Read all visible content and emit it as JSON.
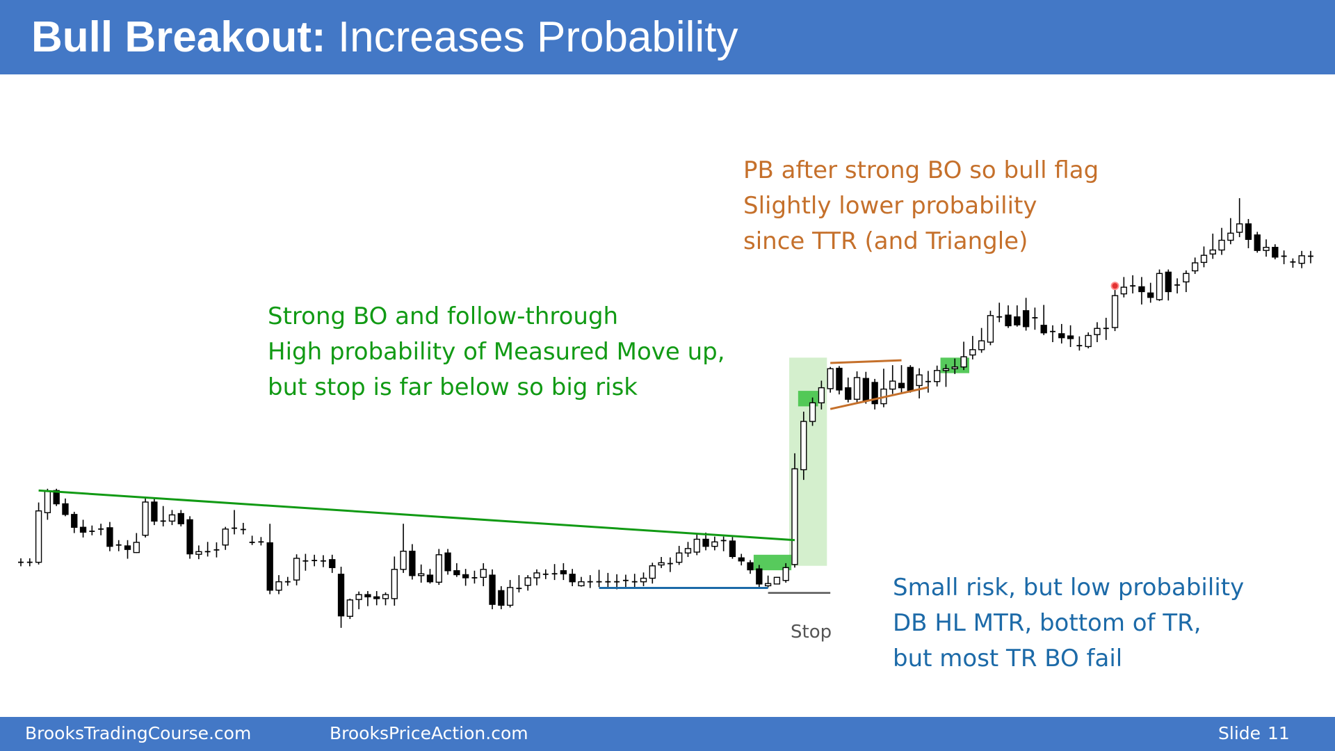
{
  "slide": {
    "title_bold": "Bull Breakout:",
    "title_rest": " Increases Probability",
    "footer": {
      "left": "BrooksTradingCourse.com",
      "middle": "BrooksPriceAction.com",
      "slide_label": "Slide",
      "slide_number": "11"
    }
  },
  "annotations": {
    "orange": [
      "PB after strong BO so bull flag",
      "Slightly lower probability",
      "since TTR (and Triangle)"
    ],
    "green": [
      "Strong BO and follow-through",
      "High probability of Measured Move  up,",
      "but stop is far below so big risk"
    ],
    "blue": [
      "Small risk, but low probability",
      "DB HL MTR, bottom of TR,",
      "but most TR BO fail"
    ],
    "stop": "Stop"
  },
  "colors": {
    "header": "#4378c6",
    "trendline": "#119a14",
    "support_line": "#1c6aa8",
    "triangle": "#c5702b",
    "highlight_bar": "#45c44a",
    "highlight_zone": "#d4efcd",
    "stop_line": "#555555"
  },
  "chart_data": {
    "type": "candlestick",
    "note": "Price bars read in vertical chart units (0 = bottom of chart, 100 = highest high); no axes are printed.",
    "ylim": [
      0,
      100
    ],
    "bars": [
      {
        "o": 17.8,
        "h": 18.7,
        "l": 16.9,
        "c": 17.8
      },
      {
        "o": 17.8,
        "h": 18.7,
        "l": 16.9,
        "c": 17.8
      },
      {
        "o": 17.8,
        "h": 31.3,
        "l": 17.3,
        "c": 29.4
      },
      {
        "o": 29.0,
        "h": 34.4,
        "l": 27.4,
        "c": 33.8
      },
      {
        "o": 34.0,
        "h": 34.4,
        "l": 30.5,
        "c": 31.0
      },
      {
        "o": 31.0,
        "h": 32.2,
        "l": 28.2,
        "c": 28.6
      },
      {
        "o": 28.6,
        "h": 29.2,
        "l": 24.4,
        "c": 25.7
      },
      {
        "o": 25.7,
        "h": 27.4,
        "l": 23.4,
        "c": 24.6
      },
      {
        "o": 24.8,
        "h": 26.1,
        "l": 23.9,
        "c": 24.8
      },
      {
        "o": 25.3,
        "h": 26.5,
        "l": 23.9,
        "c": 25.3
      },
      {
        "o": 25.6,
        "h": 26.9,
        "l": 20.3,
        "c": 21.4
      },
      {
        "o": 21.4,
        "h": 22.8,
        "l": 20.3,
        "c": 21.7
      },
      {
        "o": 21.5,
        "h": 22.8,
        "l": 18.6,
        "c": 20.7
      },
      {
        "o": 20.0,
        "h": 24.4,
        "l": 19.9,
        "c": 22.3
      },
      {
        "o": 23.9,
        "h": 32.3,
        "l": 23.4,
        "c": 31.4
      },
      {
        "o": 31.4,
        "h": 32.4,
        "l": 26.2,
        "c": 27.1
      },
      {
        "o": 27.1,
        "h": 30.5,
        "l": 25.9,
        "c": 27.1
      },
      {
        "o": 27.1,
        "h": 29.6,
        "l": 26.2,
        "c": 28.5
      },
      {
        "o": 28.8,
        "h": 29.6,
        "l": 25.9,
        "c": 26.5
      },
      {
        "o": 27.4,
        "h": 28.2,
        "l": 18.6,
        "c": 19.7
      },
      {
        "o": 19.6,
        "h": 21.6,
        "l": 18.5,
        "c": 20.2
      },
      {
        "o": 20.2,
        "h": 22.4,
        "l": 19.1,
        "c": 20.2
      },
      {
        "o": 20.6,
        "h": 22.3,
        "l": 18.9,
        "c": 20.6
      },
      {
        "o": 21.7,
        "h": 25.8,
        "l": 20.6,
        "c": 25.3
      },
      {
        "o": 25.3,
        "h": 29.6,
        "l": 24.1,
        "c": 25.5
      },
      {
        "o": 25.2,
        "h": 26.7,
        "l": 24.1,
        "c": 25.2
      },
      {
        "o": 22.3,
        "h": 23.8,
        "l": 21.7,
        "c": 22.3
      },
      {
        "o": 22.4,
        "h": 23.5,
        "l": 21.6,
        "c": 22.4
      },
      {
        "o": 22.2,
        "h": 26.5,
        "l": 10.6,
        "c": 11.5
      },
      {
        "o": 11.5,
        "h": 14.9,
        "l": 10.6,
        "c": 13.4
      },
      {
        "o": 13.4,
        "h": 14.5,
        "l": 12.5,
        "c": 13.4
      },
      {
        "o": 13.8,
        "h": 19.6,
        "l": 12.6,
        "c": 18.7
      },
      {
        "o": 18.4,
        "h": 19.7,
        "l": 15.9,
        "c": 18.1
      },
      {
        "o": 18.2,
        "h": 19.5,
        "l": 16.9,
        "c": 18.2
      },
      {
        "o": 18.1,
        "h": 19.4,
        "l": 16.7,
        "c": 18.1
      },
      {
        "o": 18.4,
        "h": 19.5,
        "l": 15.4,
        "c": 16.6
      },
      {
        "o": 15.1,
        "h": 16.8,
        "l": 3.0,
        "c": 5.7
      },
      {
        "o": 5.6,
        "h": 9.6,
        "l": 5.0,
        "c": 9.3
      },
      {
        "o": 9.4,
        "h": 11.2,
        "l": 7.2,
        "c": 10.5
      },
      {
        "o": 10.5,
        "h": 11.3,
        "l": 7.9,
        "c": 10.0
      },
      {
        "o": 10.0,
        "h": 11.3,
        "l": 8.1,
        "c": 9.6
      },
      {
        "o": 9.6,
        "h": 11.0,
        "l": 8.1,
        "c": 10.5
      },
      {
        "o": 9.6,
        "h": 19.1,
        "l": 8.0,
        "c": 16.2
      },
      {
        "o": 16.2,
        "h": 26.5,
        "l": 15.4,
        "c": 20.3
      },
      {
        "o": 20.3,
        "h": 21.9,
        "l": 13.9,
        "c": 14.8
      },
      {
        "o": 14.8,
        "h": 17.3,
        "l": 13.2,
        "c": 15.2
      },
      {
        "o": 14.9,
        "h": 16.3,
        "l": 13.0,
        "c": 13.4
      },
      {
        "o": 13.3,
        "h": 20.8,
        "l": 12.7,
        "c": 19.5
      },
      {
        "o": 19.9,
        "h": 20.8,
        "l": 15.0,
        "c": 15.9
      },
      {
        "o": 15.9,
        "h": 17.6,
        "l": 14.5,
        "c": 15.0
      },
      {
        "o": 15.0,
        "h": 16.3,
        "l": 12.5,
        "c": 14.3
      },
      {
        "o": 14.3,
        "h": 15.9,
        "l": 13.0,
        "c": 14.3
      },
      {
        "o": 14.4,
        "h": 17.6,
        "l": 12.4,
        "c": 16.2
      },
      {
        "o": 14.9,
        "h": 16.2,
        "l": 7.2,
        "c": 8.3
      },
      {
        "o": 11.4,
        "h": 12.4,
        "l": 7.2,
        "c": 8.1
      },
      {
        "o": 8.1,
        "h": 13.8,
        "l": 7.6,
        "c": 12.1
      },
      {
        "o": 11.9,
        "h": 14.9,
        "l": 11.0,
        "c": 11.9
      },
      {
        "o": 12.6,
        "h": 14.9,
        "l": 11.4,
        "c": 14.3
      },
      {
        "o": 14.3,
        "h": 16.2,
        "l": 12.6,
        "c": 15.4
      },
      {
        "o": 15.0,
        "h": 16.2,
        "l": 14.0,
        "c": 15.1
      },
      {
        "o": 15.1,
        "h": 17.4,
        "l": 13.8,
        "c": 15.2
      },
      {
        "o": 15.9,
        "h": 17.6,
        "l": 13.8,
        "c": 15.2
      },
      {
        "o": 15.1,
        "h": 16.3,
        "l": 12.4,
        "c": 13.4
      },
      {
        "o": 12.5,
        "h": 14.5,
        "l": 12.3,
        "c": 13.4
      },
      {
        "o": 13.4,
        "h": 14.9,
        "l": 12.0,
        "c": 13.4
      },
      {
        "o": 13.4,
        "h": 16.1,
        "l": 12.2,
        "c": 13.4
      },
      {
        "o": 13.4,
        "h": 15.4,
        "l": 12.1,
        "c": 13.4
      },
      {
        "o": 13.4,
        "h": 15.1,
        "l": 11.7,
        "c": 13.4
      },
      {
        "o": 13.7,
        "h": 15.0,
        "l": 12.1,
        "c": 13.7
      },
      {
        "o": 13.4,
        "h": 15.2,
        "l": 12.2,
        "c": 13.4
      },
      {
        "o": 13.4,
        "h": 15.5,
        "l": 12.4,
        "c": 14.2
      },
      {
        "o": 14.2,
        "h": 17.7,
        "l": 13.0,
        "c": 17.0
      },
      {
        "o": 17.2,
        "h": 19.0,
        "l": 16.5,
        "c": 17.7
      },
      {
        "o": 17.5,
        "h": 18.9,
        "l": 15.6,
        "c": 17.5
      },
      {
        "o": 17.8,
        "h": 21.5,
        "l": 17.2,
        "c": 19.9
      },
      {
        "o": 19.9,
        "h": 22.4,
        "l": 19.0,
        "c": 20.9
      },
      {
        "o": 20.1,
        "h": 24.4,
        "l": 19.4,
        "c": 23.0
      },
      {
        "o": 23.0,
        "h": 24.5,
        "l": 20.5,
        "c": 21.4
      },
      {
        "o": 21.4,
        "h": 23.6,
        "l": 20.5,
        "c": 22.4
      },
      {
        "o": 22.7,
        "h": 23.6,
        "l": 20.3,
        "c": 22.7
      },
      {
        "o": 22.6,
        "h": 23.5,
        "l": 18.6,
        "c": 19.1
      },
      {
        "o": 18.8,
        "h": 19.7,
        "l": 17.1,
        "c": 18.1
      },
      {
        "o": 17.7,
        "h": 18.3,
        "l": 15.2,
        "c": 16.1
      },
      {
        "o": 16.3,
        "h": 17.2,
        "l": 12.0,
        "c": 12.9
      },
      {
        "o": 12.5,
        "h": 14.8,
        "l": 12.1,
        "c": 13.0
      },
      {
        "o": 12.9,
        "h": 14.5,
        "l": 12.9,
        "c": 14.4
      },
      {
        "o": 13.7,
        "h": 17.6,
        "l": 13.2,
        "c": 16.6
      },
      {
        "o": 17.3,
        "h": 42.4,
        "l": 16.6,
        "c": 38.9
      },
      {
        "o": 38.7,
        "h": 51.8,
        "l": 36.4,
        "c": 49.6
      },
      {
        "o": 49.6,
        "h": 55.0,
        "l": 48.6,
        "c": 53.8
      },
      {
        "o": 53.8,
        "h": 58.8,
        "l": 52.3,
        "c": 57.2
      },
      {
        "o": 57.0,
        "h": 61.9,
        "l": 56.1,
        "c": 61.5
      },
      {
        "o": 61.6,
        "h": 62.1,
        "l": 55.7,
        "c": 56.7
      },
      {
        "o": 57.2,
        "h": 59.5,
        "l": 53.9,
        "c": 54.6
      },
      {
        "o": 54.6,
        "h": 60.9,
        "l": 53.8,
        "c": 59.5
      },
      {
        "o": 59.3,
        "h": 60.8,
        "l": 53.6,
        "c": 54.3
      },
      {
        "o": 58.4,
        "h": 59.2,
        "l": 52.3,
        "c": 53.6
      },
      {
        "o": 53.6,
        "h": 61.5,
        "l": 52.8,
        "c": 56.9
      },
      {
        "o": 56.9,
        "h": 62.3,
        "l": 55.8,
        "c": 58.7
      },
      {
        "o": 58.2,
        "h": 62.3,
        "l": 55.9,
        "c": 57.2
      },
      {
        "o": 61.8,
        "h": 62.3,
        "l": 56.1,
        "c": 56.6
      },
      {
        "o": 57.7,
        "h": 61.6,
        "l": 54.8,
        "c": 60.1
      },
      {
        "o": 58.4,
        "h": 61.0,
        "l": 56.1,
        "c": 58.6
      },
      {
        "o": 58.6,
        "h": 62.2,
        "l": 57.5,
        "c": 61.1
      },
      {
        "o": 61.1,
        "h": 62.5,
        "l": 57.4,
        "c": 61.5
      },
      {
        "o": 61.5,
        "h": 63.8,
        "l": 60.3,
        "c": 61.9
      },
      {
        "o": 61.9,
        "h": 67.6,
        "l": 61.2,
        "c": 64.2
      },
      {
        "o": 64.6,
        "h": 68.9,
        "l": 63.6,
        "c": 65.8
      },
      {
        "o": 65.8,
        "h": 70.7,
        "l": 65.1,
        "c": 67.8
      },
      {
        "o": 67.5,
        "h": 74.6,
        "l": 66.8,
        "c": 73.5
      },
      {
        "o": 73.4,
        "h": 76.4,
        "l": 72.0,
        "c": 73.2
      },
      {
        "o": 73.6,
        "h": 75.8,
        "l": 70.7,
        "c": 71.2
      },
      {
        "o": 73.2,
        "h": 75.8,
        "l": 71.0,
        "c": 71.4
      },
      {
        "o": 74.6,
        "h": 77.5,
        "l": 70.1,
        "c": 71.0
      },
      {
        "o": 73.0,
        "h": 75.3,
        "l": 70.3,
        "c": 73.0
      },
      {
        "o": 71.3,
        "h": 75.9,
        "l": 69.1,
        "c": 69.6
      },
      {
        "o": 69.9,
        "h": 71.3,
        "l": 67.5,
        "c": 69.9
      },
      {
        "o": 69.4,
        "h": 71.6,
        "l": 67.2,
        "c": 68.5
      },
      {
        "o": 68.9,
        "h": 71.3,
        "l": 66.4,
        "c": 68.3
      },
      {
        "o": 66.7,
        "h": 68.8,
        "l": 65.6,
        "c": 66.7
      },
      {
        "o": 66.5,
        "h": 69.7,
        "l": 66.1,
        "c": 69.0
      },
      {
        "o": 69.2,
        "h": 72.0,
        "l": 67.5,
        "c": 70.6
      },
      {
        "o": 70.6,
        "h": 73.0,
        "l": 68.0,
        "c": 70.6
      },
      {
        "o": 70.8,
        "h": 80.7,
        "l": 70.0,
        "c": 78.0
      },
      {
        "o": 78.4,
        "h": 82.2,
        "l": 77.6,
        "c": 79.9
      },
      {
        "o": 80.2,
        "h": 82.6,
        "l": 78.5,
        "c": 80.2
      },
      {
        "o": 80.0,
        "h": 82.2,
        "l": 76.0,
        "c": 78.9
      },
      {
        "o": 78.6,
        "h": 80.9,
        "l": 76.4,
        "c": 77.6
      },
      {
        "o": 77.1,
        "h": 83.9,
        "l": 76.8,
        "c": 83.0
      },
      {
        "o": 83.3,
        "h": 83.9,
        "l": 76.9,
        "c": 78.9
      },
      {
        "o": 80.4,
        "h": 81.9,
        "l": 78.5,
        "c": 80.4
      },
      {
        "o": 81.1,
        "h": 83.7,
        "l": 78.8,
        "c": 83.0
      },
      {
        "o": 83.6,
        "h": 86.6,
        "l": 82.9,
        "c": 85.4
      },
      {
        "o": 85.5,
        "h": 89.1,
        "l": 84.4,
        "c": 87.1
      },
      {
        "o": 87.4,
        "h": 92.0,
        "l": 86.3,
        "c": 88.3
      },
      {
        "o": 88.3,
        "h": 93.3,
        "l": 87.2,
        "c": 90.5
      },
      {
        "o": 90.5,
        "h": 95.5,
        "l": 89.6,
        "c": 92.1
      },
      {
        "o": 92.3,
        "h": 100.0,
        "l": 91.2,
        "c": 94.2
      },
      {
        "o": 94.2,
        "h": 95.3,
        "l": 88.7,
        "c": 90.7
      },
      {
        "o": 91.7,
        "h": 92.4,
        "l": 87.7,
        "c": 88.2
      },
      {
        "o": 88.2,
        "h": 90.7,
        "l": 86.8,
        "c": 88.9
      },
      {
        "o": 88.9,
        "h": 89.6,
        "l": 86.2,
        "c": 86.7
      },
      {
        "o": 86.9,
        "h": 88.2,
        "l": 85.1,
        "c": 86.9
      },
      {
        "o": 85.6,
        "h": 86.4,
        "l": 84.3,
        "c": 85.6
      },
      {
        "o": 85.3,
        "h": 88.1,
        "l": 84.2,
        "c": 87.0
      },
      {
        "o": 87.1,
        "h": 88.1,
        "l": 85.3,
        "c": 86.9
      }
    ]
  }
}
